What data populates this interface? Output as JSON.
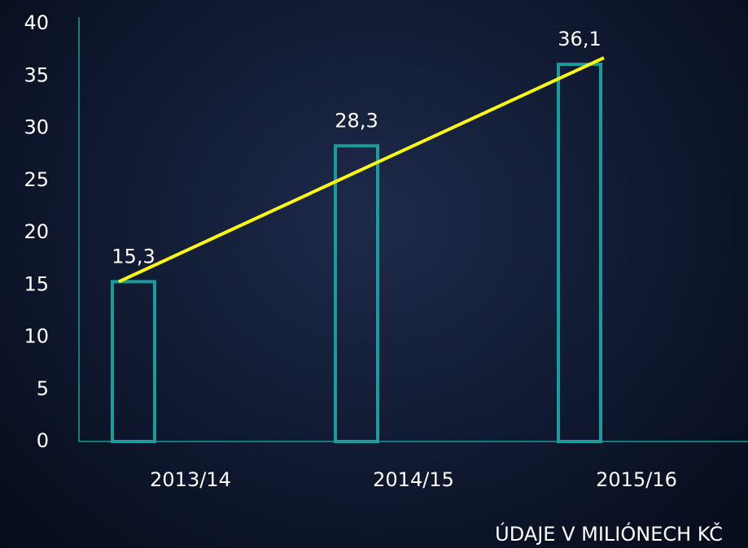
{
  "chart_data": {
    "type": "bar",
    "categories": [
      "2013/14",
      "2014/15",
      "2015/16"
    ],
    "values": [
      15.3,
      28.3,
      36.1
    ],
    "value_labels": [
      "15,3",
      "28,3",
      "36,1"
    ],
    "color": "#189c9c",
    "trend_color": "#ffff00",
    "x_label": "ÚDAJE V MILIÓNECH KČ",
    "ylim": [
      0,
      40
    ],
    "yticks": [
      0,
      5,
      10,
      15,
      20,
      25,
      30,
      35,
      40
    ]
  }
}
